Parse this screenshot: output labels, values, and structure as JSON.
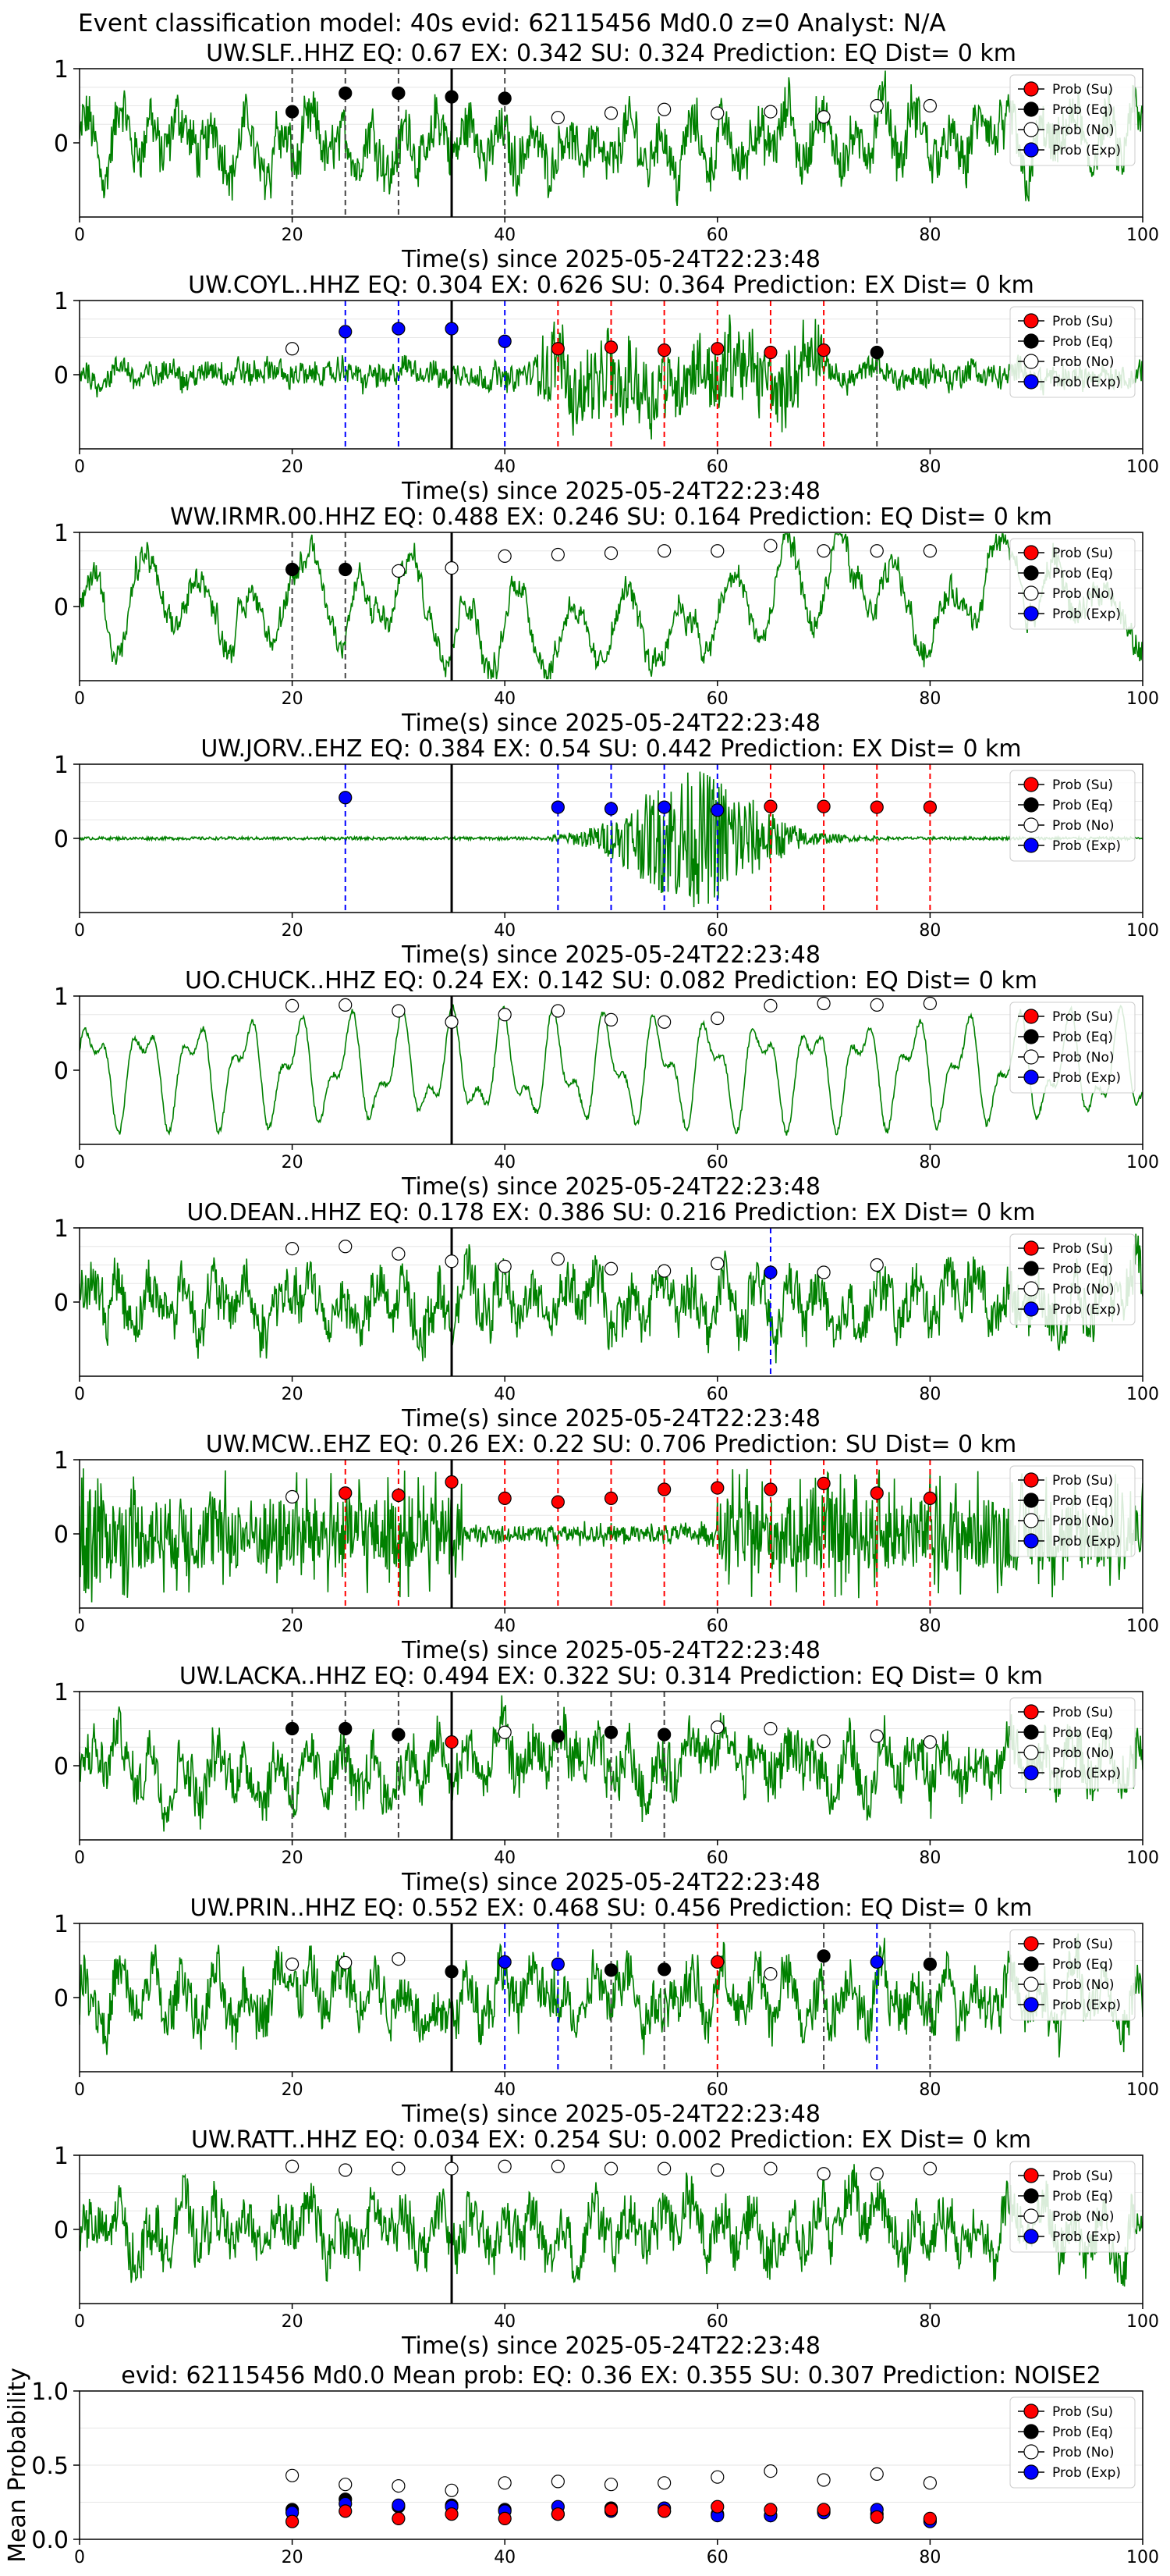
{
  "figure_title": "Event classification model: 40s evid: 62115456 Md0.0 z=0 Analyst: N/A",
  "colors": {
    "trace": "#008000",
    "su": "#ff0000",
    "eq": "#000000",
    "no": "#ffffff",
    "exp": "#0000ff",
    "origin_line": "#000000"
  },
  "legend": [
    "Prob (Su)",
    "Prob (Eq)",
    "Prob (No)",
    "Prob (Exp)"
  ],
  "chart_data": [
    {
      "type": "line",
      "station": "UW.SLF..HHZ",
      "title": "UW.SLF..HHZ   EQ: 0.67  EX: 0.342  SU: 0.324   Prediction: EQ    Dist= 0 km",
      "xlabel": "Time(s) since 2025-05-24T22:23:48",
      "xlim": [
        0,
        100
      ],
      "ylim": [
        -1,
        1
      ],
      "xticks": [
        "0",
        "20",
        "40",
        "60",
        "80",
        "100"
      ],
      "yticks": [
        "1",
        "0"
      ],
      "trace_style": "broadband",
      "origin_line_x": 35,
      "points": [
        {
          "x": 20,
          "y": 0.42,
          "class": "eq"
        },
        {
          "x": 25,
          "y": 0.67,
          "class": "eq"
        },
        {
          "x": 30,
          "y": 0.67,
          "class": "eq"
        },
        {
          "x": 35,
          "y": 0.62,
          "class": "eq"
        },
        {
          "x": 40,
          "y": 0.6,
          "class": "eq"
        },
        {
          "x": 45,
          "y": 0.34,
          "class": "no"
        },
        {
          "x": 50,
          "y": 0.4,
          "class": "no"
        },
        {
          "x": 55,
          "y": 0.45,
          "class": "no"
        },
        {
          "x": 60,
          "y": 0.4,
          "class": "no"
        },
        {
          "x": 65,
          "y": 0.42,
          "class": "no"
        },
        {
          "x": 70,
          "y": 0.35,
          "class": "no"
        },
        {
          "x": 75,
          "y": 0.5,
          "class": "no"
        },
        {
          "x": 80,
          "y": 0.5,
          "class": "no"
        }
      ]
    },
    {
      "type": "line",
      "station": "UW.COYL..HHZ",
      "title": "UW.COYL..HHZ   EQ: 0.304  EX: 0.626  SU: 0.364   Prediction: EX    Dist= 0 km",
      "xlabel": "Time(s) since 2025-05-24T22:23:48",
      "xlim": [
        0,
        100
      ],
      "ylim": [
        -1,
        1
      ],
      "xticks": [
        "0",
        "20",
        "40",
        "60",
        "80",
        "100"
      ],
      "yticks": [
        "1",
        "0"
      ],
      "trace_style": "burst",
      "origin_line_x": 35,
      "points": [
        {
          "x": 20,
          "y": 0.35,
          "class": "no"
        },
        {
          "x": 25,
          "y": 0.58,
          "class": "exp"
        },
        {
          "x": 30,
          "y": 0.62,
          "class": "exp"
        },
        {
          "x": 35,
          "y": 0.62,
          "class": "exp"
        },
        {
          "x": 40,
          "y": 0.45,
          "class": "exp"
        },
        {
          "x": 45,
          "y": 0.35,
          "class": "su"
        },
        {
          "x": 50,
          "y": 0.37,
          "class": "su"
        },
        {
          "x": 55,
          "y": 0.33,
          "class": "su"
        },
        {
          "x": 60,
          "y": 0.35,
          "class": "su"
        },
        {
          "x": 65,
          "y": 0.3,
          "class": "su"
        },
        {
          "x": 70,
          "y": 0.33,
          "class": "su"
        },
        {
          "x": 75,
          "y": 0.3,
          "class": "eq"
        }
      ]
    },
    {
      "type": "line",
      "station": "WW.IRMR.00.HHZ",
      "title": "WW.IRMR.00.HHZ   EQ: 0.488  EX: 0.246  SU: 0.164   Prediction: EQ    Dist= 0 km",
      "xlabel": "Time(s) since 2025-05-24T22:23:48",
      "xlim": [
        0,
        100
      ],
      "ylim": [
        -1,
        1
      ],
      "xticks": [
        "0",
        "20",
        "40",
        "60",
        "80",
        "100"
      ],
      "yticks": [
        "1",
        "0"
      ],
      "trace_style": "lowfreq",
      "origin_line_x": 35,
      "points": [
        {
          "x": 20,
          "y": 0.5,
          "class": "eq"
        },
        {
          "x": 25,
          "y": 0.5,
          "class": "eq"
        },
        {
          "x": 30,
          "y": 0.48,
          "class": "no"
        },
        {
          "x": 35,
          "y": 0.52,
          "class": "no"
        },
        {
          "x": 40,
          "y": 0.68,
          "class": "no"
        },
        {
          "x": 45,
          "y": 0.7,
          "class": "no"
        },
        {
          "x": 50,
          "y": 0.72,
          "class": "no"
        },
        {
          "x": 55,
          "y": 0.75,
          "class": "no"
        },
        {
          "x": 60,
          "y": 0.75,
          "class": "no"
        },
        {
          "x": 65,
          "y": 0.82,
          "class": "no"
        },
        {
          "x": 70,
          "y": 0.75,
          "class": "no"
        },
        {
          "x": 75,
          "y": 0.75,
          "class": "no"
        },
        {
          "x": 80,
          "y": 0.75,
          "class": "no"
        }
      ]
    },
    {
      "type": "line",
      "station": "UW.JORV..EHZ",
      "title": "UW.JORV..EHZ   EQ: 0.384  EX: 0.54  SU: 0.442   Prediction: EX    Dist= 0 km",
      "xlabel": "Time(s) since 2025-05-24T22:23:48",
      "xlim": [
        0,
        100
      ],
      "ylim": [
        -1,
        1
      ],
      "xticks": [
        "0",
        "20",
        "40",
        "60",
        "80",
        "100"
      ],
      "yticks": [
        "1",
        "0"
      ],
      "trace_style": "quiet-burst",
      "origin_line_x": 35,
      "points": [
        {
          "x": 25,
          "y": 0.55,
          "class": "exp"
        },
        {
          "x": 45,
          "y": 0.42,
          "class": "exp"
        },
        {
          "x": 50,
          "y": 0.4,
          "class": "exp"
        },
        {
          "x": 55,
          "y": 0.42,
          "class": "exp"
        },
        {
          "x": 60,
          "y": 0.38,
          "class": "exp"
        },
        {
          "x": 65,
          "y": 0.43,
          "class": "su"
        },
        {
          "x": 70,
          "y": 0.43,
          "class": "su"
        },
        {
          "x": 75,
          "y": 0.42,
          "class": "su"
        },
        {
          "x": 80,
          "y": 0.42,
          "class": "su"
        }
      ]
    },
    {
      "type": "line",
      "station": "UO.CHUCK..HHZ",
      "title": "UO.CHUCK..HHZ   EQ: 0.24  EX: 0.142  SU: 0.082   Prediction: EQ    Dist= 0 km",
      "xlabel": "Time(s) since 2025-05-24T22:23:48",
      "xlim": [
        0,
        100
      ],
      "ylim": [
        -1,
        1
      ],
      "xticks": [
        "0",
        "20",
        "40",
        "60",
        "80",
        "100"
      ],
      "yticks": [
        "1",
        "0"
      ],
      "trace_style": "smooth",
      "origin_line_x": 35,
      "points": [
        {
          "x": 20,
          "y": 0.87,
          "class": "no"
        },
        {
          "x": 25,
          "y": 0.88,
          "class": "no"
        },
        {
          "x": 30,
          "y": 0.8,
          "class": "no"
        },
        {
          "x": 35,
          "y": 0.65,
          "class": "no"
        },
        {
          "x": 40,
          "y": 0.75,
          "class": "no"
        },
        {
          "x": 45,
          "y": 0.8,
          "class": "no"
        },
        {
          "x": 50,
          "y": 0.68,
          "class": "no"
        },
        {
          "x": 55,
          "y": 0.65,
          "class": "no"
        },
        {
          "x": 60,
          "y": 0.7,
          "class": "no"
        },
        {
          "x": 65,
          "y": 0.87,
          "class": "no"
        },
        {
          "x": 70,
          "y": 0.9,
          "class": "no"
        },
        {
          "x": 75,
          "y": 0.88,
          "class": "no"
        },
        {
          "x": 80,
          "y": 0.9,
          "class": "no"
        }
      ]
    },
    {
      "type": "line",
      "station": "UO.DEAN..HHZ",
      "title": "UO.DEAN..HHZ   EQ: 0.178  EX: 0.386  SU: 0.216   Prediction: EX    Dist= 0 km",
      "xlabel": "Time(s) since 2025-05-24T22:23:48",
      "xlim": [
        0,
        100
      ],
      "ylim": [
        -1,
        1
      ],
      "xticks": [
        "0",
        "20",
        "40",
        "60",
        "80",
        "100"
      ],
      "yticks": [
        "1",
        "0"
      ],
      "trace_style": "broadband",
      "origin_line_x": 35,
      "points": [
        {
          "x": 20,
          "y": 0.72,
          "class": "no"
        },
        {
          "x": 25,
          "y": 0.75,
          "class": "no"
        },
        {
          "x": 30,
          "y": 0.65,
          "class": "no"
        },
        {
          "x": 35,
          "y": 0.55,
          "class": "no"
        },
        {
          "x": 40,
          "y": 0.48,
          "class": "no"
        },
        {
          "x": 45,
          "y": 0.58,
          "class": "no"
        },
        {
          "x": 50,
          "y": 0.45,
          "class": "no"
        },
        {
          "x": 55,
          "y": 0.42,
          "class": "no"
        },
        {
          "x": 60,
          "y": 0.52,
          "class": "no"
        },
        {
          "x": 65,
          "y": 0.4,
          "class": "exp"
        },
        {
          "x": 70,
          "y": 0.4,
          "class": "no"
        },
        {
          "x": 75,
          "y": 0.5,
          "class": "no"
        }
      ]
    },
    {
      "type": "line",
      "station": "UW.MCW..EHZ",
      "title": "UW.MCW..EHZ   EQ: 0.26  EX: 0.22  SU: 0.706   Prediction: SU    Dist= 0 km",
      "xlabel": "Time(s) since 2025-05-24T22:23:48",
      "xlim": [
        0,
        100
      ],
      "ylim": [
        -1,
        1
      ],
      "xticks": [
        "0",
        "20",
        "40",
        "60",
        "80",
        "100"
      ],
      "yticks": [
        "1",
        "0"
      ],
      "trace_style": "spiky",
      "origin_line_x": 35,
      "points": [
        {
          "x": 20,
          "y": 0.5,
          "class": "no"
        },
        {
          "x": 25,
          "y": 0.55,
          "class": "su"
        },
        {
          "x": 30,
          "y": 0.52,
          "class": "su"
        },
        {
          "x": 35,
          "y": 0.7,
          "class": "su"
        },
        {
          "x": 40,
          "y": 0.48,
          "class": "su"
        },
        {
          "x": 45,
          "y": 0.43,
          "class": "su"
        },
        {
          "x": 50,
          "y": 0.48,
          "class": "su"
        },
        {
          "x": 55,
          "y": 0.6,
          "class": "su"
        },
        {
          "x": 60,
          "y": 0.62,
          "class": "su"
        },
        {
          "x": 65,
          "y": 0.6,
          "class": "su"
        },
        {
          "x": 70,
          "y": 0.68,
          "class": "su"
        },
        {
          "x": 75,
          "y": 0.55,
          "class": "su"
        },
        {
          "x": 80,
          "y": 0.48,
          "class": "su"
        }
      ]
    },
    {
      "type": "line",
      "station": "UW.LACKA..HHZ",
      "title": "UW.LACKA..HHZ   EQ: 0.494  EX: 0.322  SU: 0.314   Prediction: EQ    Dist= 0 km",
      "xlabel": "Time(s) since 2025-05-24T22:23:48",
      "xlim": [
        0,
        100
      ],
      "ylim": [
        -1,
        1
      ],
      "xticks": [
        "0",
        "20",
        "40",
        "60",
        "80",
        "100"
      ],
      "yticks": [
        "1",
        "0"
      ],
      "trace_style": "broadband",
      "origin_line_x": 35,
      "points": [
        {
          "x": 20,
          "y": 0.5,
          "class": "eq"
        },
        {
          "x": 25,
          "y": 0.5,
          "class": "eq"
        },
        {
          "x": 30,
          "y": 0.42,
          "class": "eq"
        },
        {
          "x": 35,
          "y": 0.32,
          "class": "su"
        },
        {
          "x": 40,
          "y": 0.45,
          "class": "no"
        },
        {
          "x": 45,
          "y": 0.4,
          "class": "eq"
        },
        {
          "x": 50,
          "y": 0.45,
          "class": "eq"
        },
        {
          "x": 55,
          "y": 0.42,
          "class": "eq"
        },
        {
          "x": 60,
          "y": 0.52,
          "class": "no"
        },
        {
          "x": 65,
          "y": 0.5,
          "class": "no"
        },
        {
          "x": 70,
          "y": 0.33,
          "class": "no"
        },
        {
          "x": 75,
          "y": 0.4,
          "class": "no"
        },
        {
          "x": 80,
          "y": 0.32,
          "class": "no"
        }
      ]
    },
    {
      "type": "line",
      "station": "UW.PRIN..HHZ",
      "title": "UW.PRIN..HHZ   EQ: 0.552  EX: 0.468  SU: 0.456   Prediction: EQ    Dist= 0 km",
      "xlabel": "Time(s) since 2025-05-24T22:23:48",
      "xlim": [
        0,
        100
      ],
      "ylim": [
        -1,
        1
      ],
      "xticks": [
        "0",
        "20",
        "40",
        "60",
        "80",
        "100"
      ],
      "yticks": [
        "1",
        "0"
      ],
      "trace_style": "broadband",
      "origin_line_x": 35,
      "points": [
        {
          "x": 20,
          "y": 0.45,
          "class": "no"
        },
        {
          "x": 25,
          "y": 0.47,
          "class": "no"
        },
        {
          "x": 30,
          "y": 0.52,
          "class": "no"
        },
        {
          "x": 35,
          "y": 0.35,
          "class": "eq"
        },
        {
          "x": 40,
          "y": 0.48,
          "class": "exp"
        },
        {
          "x": 45,
          "y": 0.45,
          "class": "exp"
        },
        {
          "x": 50,
          "y": 0.37,
          "class": "eq"
        },
        {
          "x": 55,
          "y": 0.38,
          "class": "eq"
        },
        {
          "x": 60,
          "y": 0.48,
          "class": "su"
        },
        {
          "x": 65,
          "y": 0.32,
          "class": "no"
        },
        {
          "x": 70,
          "y": 0.56,
          "class": "eq"
        },
        {
          "x": 75,
          "y": 0.48,
          "class": "exp"
        },
        {
          "x": 80,
          "y": 0.45,
          "class": "eq"
        }
      ]
    },
    {
      "type": "line",
      "station": "UW.RATT..HHZ",
      "title": "UW.RATT..HHZ   EQ: 0.034  EX: 0.254  SU: 0.002   Prediction: EX    Dist= 0 km",
      "xlabel": "Time(s) since 2025-05-24T22:23:48",
      "xlim": [
        0,
        100
      ],
      "ylim": [
        -1,
        1
      ],
      "xticks": [
        "0",
        "20",
        "40",
        "60",
        "80",
        "100"
      ],
      "yticks": [
        "1",
        "0"
      ],
      "trace_style": "broadband",
      "origin_line_x": 35,
      "points": [
        {
          "x": 20,
          "y": 0.85,
          "class": "no"
        },
        {
          "x": 25,
          "y": 0.8,
          "class": "no"
        },
        {
          "x": 30,
          "y": 0.82,
          "class": "no"
        },
        {
          "x": 35,
          "y": 0.82,
          "class": "no"
        },
        {
          "x": 40,
          "y": 0.85,
          "class": "no"
        },
        {
          "x": 45,
          "y": 0.85,
          "class": "no"
        },
        {
          "x": 50,
          "y": 0.82,
          "class": "no"
        },
        {
          "x": 55,
          "y": 0.82,
          "class": "no"
        },
        {
          "x": 60,
          "y": 0.8,
          "class": "no"
        },
        {
          "x": 65,
          "y": 0.82,
          "class": "no"
        },
        {
          "x": 70,
          "y": 0.75,
          "class": "no"
        },
        {
          "x": 75,
          "y": 0.75,
          "class": "no"
        },
        {
          "x": 80,
          "y": 0.82,
          "class": "no"
        }
      ]
    },
    {
      "type": "scatter",
      "title": "evid: 62115456  Md0.0   Mean prob:   EQ: 0.36  EX: 0.355  SU: 0.307   Prediction: NOISE2",
      "ylabel": "Mean Probability",
      "xlim": [
        0,
        100
      ],
      "ylim": [
        0,
        1
      ],
      "xticks": [
        "0",
        "20",
        "40",
        "60",
        "80",
        "100"
      ],
      "yticks": [
        "1.0",
        "0.5",
        "0.0"
      ],
      "x": [
        20,
        25,
        30,
        35,
        40,
        45,
        50,
        55,
        60,
        65,
        70,
        75,
        80
      ],
      "series": [
        {
          "name": "Prob (No)",
          "class": "no",
          "values": [
            0.43,
            0.37,
            0.36,
            0.33,
            0.38,
            0.39,
            0.37,
            0.38,
            0.42,
            0.46,
            0.4,
            0.44,
            0.38
          ]
        },
        {
          "name": "Prob (Eq)",
          "class": "eq",
          "values": [
            0.2,
            0.27,
            0.22,
            0.23,
            0.2,
            0.17,
            0.21,
            0.19,
            0.17,
            0.16,
            0.19,
            0.17,
            0.13
          ]
        },
        {
          "name": "Prob (Exp)",
          "class": "exp",
          "values": [
            0.18,
            0.24,
            0.23,
            0.22,
            0.19,
            0.22,
            0.19,
            0.21,
            0.16,
            0.16,
            0.18,
            0.2,
            0.12
          ]
        },
        {
          "name": "Prob (Su)",
          "class": "su",
          "values": [
            0.12,
            0.19,
            0.14,
            0.17,
            0.14,
            0.17,
            0.2,
            0.19,
            0.22,
            0.2,
            0.2,
            0.15,
            0.14
          ]
        }
      ]
    }
  ]
}
